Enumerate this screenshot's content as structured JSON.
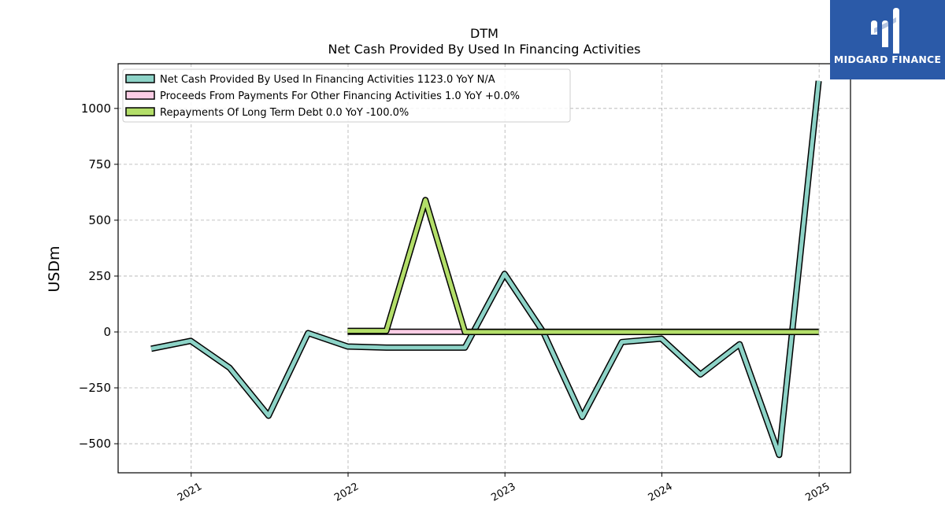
{
  "chart_data": {
    "type": "line",
    "title": "DTM",
    "subtitle": "Net Cash Provided By Used In Financing Activities",
    "ylabel": "USDm",
    "xlabel": "",
    "xlim": [
      "2020-07-15",
      "2025-03-15"
    ],
    "ylim": [
      -630,
      1200
    ],
    "yticks": [
      -500,
      -250,
      0,
      250,
      500,
      750,
      1000
    ],
    "ytick_labels": [
      "−500",
      "−250",
      "0",
      "250",
      "500",
      "750",
      "1000"
    ],
    "xticks": [
      "2021-01-01",
      "2022-01-01",
      "2023-01-01",
      "2024-01-01",
      "2025-01-01"
    ],
    "xtick_labels": [
      "2021",
      "2022",
      "2023",
      "2024",
      "2025"
    ],
    "grid": true,
    "legend_position": "top-left",
    "series": [
      {
        "name": "Net Cash Provided By Used In Financing Activities",
        "legend_label": "Net Cash Provided By Used In Financing Activities  1123.0 YoY N/A",
        "color": "#8dd3c7",
        "x": [
          "2020-09-30",
          "2020-12-31",
          "2021-03-31",
          "2021-06-30",
          "2021-09-30",
          "2021-12-31",
          "2022-03-31",
          "2022-06-30",
          "2022-09-30",
          "2022-12-31",
          "2023-03-31",
          "2023-06-30",
          "2023-09-30",
          "2023-12-31",
          "2024-03-31",
          "2024-06-30",
          "2024-09-30",
          "2024-12-31"
        ],
        "values": [
          -75,
          -40,
          -160,
          -375,
          -5,
          -65,
          -70,
          -70,
          -70,
          260,
          0,
          -380,
          -45,
          -30,
          -190,
          -55,
          -550,
          1123
        ]
      },
      {
        "name": "Proceeds From Payments For Other Financing Activities",
        "legend_label": "Proceeds From Payments For Other Financing Activities  1.0 YoY +0.0%",
        "color": "#fccde5",
        "x": [
          "2021-12-31",
          "2022-03-31",
          "2022-06-30",
          "2022-09-30",
          "2022-12-31",
          "2023-03-31",
          "2023-06-30",
          "2023-09-30",
          "2023-12-31",
          "2024-03-31",
          "2024-06-30",
          "2024-09-30",
          "2024-12-31"
        ],
        "values": [
          1,
          1,
          1,
          1,
          1,
          1,
          1,
          1,
          1,
          1,
          1,
          1,
          1
        ]
      },
      {
        "name": "Repayments Of Long Term Debt",
        "legend_label": "Repayments Of Long Term Debt  0.0 YoY -100.0%",
        "color": "#b3de69",
        "x": [
          "2021-12-31",
          "2022-03-31",
          "2022-06-30",
          "2022-09-30",
          "2022-12-31",
          "2023-03-31",
          "2023-06-30",
          "2023-09-30",
          "2023-12-31",
          "2024-03-31",
          "2024-06-30",
          "2024-09-30",
          "2024-12-31"
        ],
        "values": [
          5,
          5,
          590,
          0,
          0,
          0,
          0,
          0,
          0,
          0,
          0,
          0,
          0
        ]
      }
    ]
  },
  "logo": {
    "text": "MIDGARD FINANCE",
    "bg_color": "#2b5aa8"
  }
}
